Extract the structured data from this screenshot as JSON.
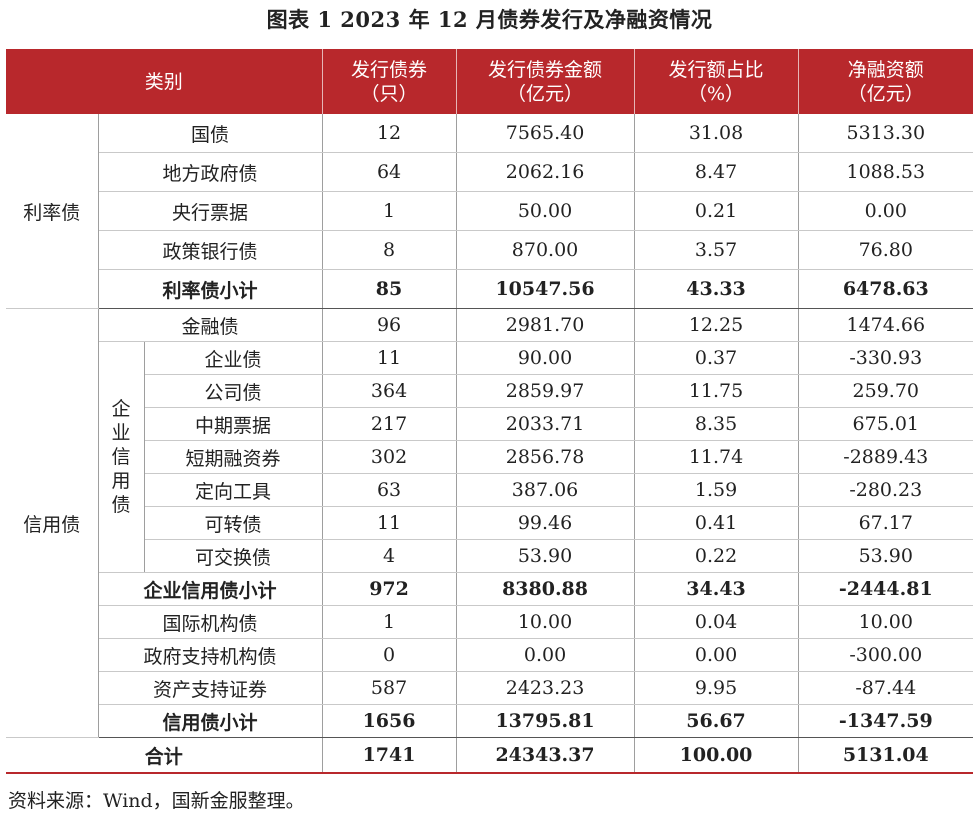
{
  "title": "图表 1  2023 年 12 月债券发行及净融资情况",
  "header": {
    "category": "类别",
    "issued_count_1": "发行债券",
    "issued_count_2": "（只）",
    "issued_amount_1": "发行债券金额",
    "issued_amount_2": "（亿元）",
    "share_1": "发行额占比",
    "share_2": "（%）",
    "net_1": "净融资额",
    "net_2": "（亿元）"
  },
  "groups": {
    "rate": "利率债",
    "credit": "信用债",
    "corp_credit_chars": [
      "企",
      "业",
      "信",
      "用",
      "债"
    ]
  },
  "rows": {
    "guozhai": {
      "name": "国债",
      "count": "12",
      "amount": "7565.40",
      "share": "31.08",
      "net": "5313.30"
    },
    "difang": {
      "name": "地方政府债",
      "count": "64",
      "amount": "2062.16",
      "share": "8.47",
      "net": "1088.53"
    },
    "yanghang": {
      "name": "央行票据",
      "count": "1",
      "amount": "50.00",
      "share": "0.21",
      "net": "0.00"
    },
    "zhengce": {
      "name": "政策银行债",
      "count": "8",
      "amount": "870.00",
      "share": "3.57",
      "net": "76.80"
    },
    "rate_subtotal": {
      "name": "利率债小计",
      "count": "85",
      "amount": "10547.56",
      "share": "43.33",
      "net": "6478.63"
    },
    "jinrong": {
      "name": "金融债",
      "count": "96",
      "amount": "2981.70",
      "share": "12.25",
      "net": "1474.66"
    },
    "qiye": {
      "name": "企业债",
      "count": "11",
      "amount": "90.00",
      "share": "0.37",
      "net": "-330.93"
    },
    "gongsi": {
      "name": "公司债",
      "count": "364",
      "amount": "2859.97",
      "share": "11.75",
      "net": "259.70"
    },
    "zhongqi": {
      "name": "中期票据",
      "count": "217",
      "amount": "2033.71",
      "share": "8.35",
      "net": "675.01"
    },
    "duanqi": {
      "name": "短期融资券",
      "count": "302",
      "amount": "2856.78",
      "share": "11.74",
      "net": "-2889.43"
    },
    "dingxiang": {
      "name": "定向工具",
      "count": "63",
      "amount": "387.06",
      "share": "1.59",
      "net": "-280.23"
    },
    "kezhuan": {
      "name": "可转债",
      "count": "11",
      "amount": "99.46",
      "share": "0.41",
      "net": "67.17"
    },
    "kejiaohuan": {
      "name": "可交换债",
      "count": "4",
      "amount": "53.90",
      "share": "0.22",
      "net": "53.90"
    },
    "corp_subtotal": {
      "name": "企业信用债小计",
      "count": "972",
      "amount": "8380.88",
      "share": "34.43",
      "net": "-2444.81"
    },
    "guoji": {
      "name": "国际机构债",
      "count": "1",
      "amount": "10.00",
      "share": "0.04",
      "net": "10.00"
    },
    "zhengfu_zhichi": {
      "name": "政府支持机构债",
      "count": "0",
      "amount": "0.00",
      "share": "0.00",
      "net": "-300.00"
    },
    "zichan": {
      "name": "资产支持证券",
      "count": "587",
      "amount": "2423.23",
      "share": "9.95",
      "net": "-87.44"
    },
    "credit_subtotal": {
      "name": "信用债小计",
      "count": "1656",
      "amount": "13795.81",
      "share": "56.67",
      "net": "-1347.59"
    },
    "total": {
      "name": "合计",
      "count": "1741",
      "amount": "24343.37",
      "share": "100.00",
      "net": "5131.04"
    }
  },
  "source": "资料来源：Wind，国新金服整理。"
}
